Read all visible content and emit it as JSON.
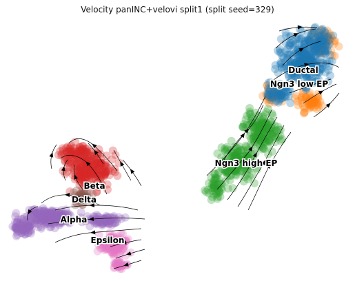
{
  "chart_data": {
    "type": "scatter",
    "title": "Velocity panINC+velovi split1 (split seed=329)",
    "xlabel": "",
    "ylabel": "",
    "axes": "off",
    "overlay": "velocity stream arrows",
    "clusters": [
      {
        "name": "Ductal",
        "color": "#1f77b4"
      },
      {
        "name": "Ngn3 low EP",
        "color": "#ff7f0e"
      },
      {
        "name": "Ngn3 high EP",
        "color": "#2ca02c"
      },
      {
        "name": "Beta",
        "color": "#d62728"
      },
      {
        "name": "Delta",
        "color": "#8c564b"
      },
      {
        "name": "Alpha",
        "color": "#9467bd"
      },
      {
        "name": "Epsilon",
        "color": "#e377c2"
      }
    ]
  }
}
